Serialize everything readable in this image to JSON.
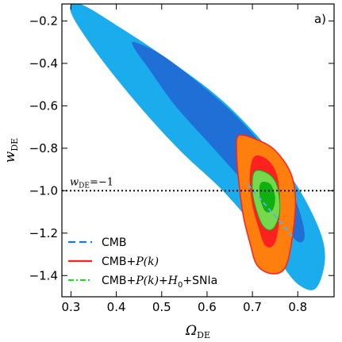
{
  "chart_data": {
    "type": "contour",
    "panel_label": "a)",
    "xlabel": "Ω",
    "xlabel_sub": "DE",
    "ylabel": "w",
    "ylabel_sub": "DE",
    "xlim": [
      0.28,
      0.88
    ],
    "ylim": [
      -1.5,
      -0.12
    ],
    "x_ticks": [
      0.3,
      0.4,
      0.5,
      0.6,
      0.7,
      0.8
    ],
    "x_tick_labels": [
      "0.3",
      "0.4",
      "0.5",
      "0.6",
      "0.7",
      "0.8"
    ],
    "y_ticks": [
      -0.2,
      -0.4,
      -0.6,
      -0.8,
      -1.0,
      -1.2,
      -1.4
    ],
    "y_tick_labels": [
      "−0.2",
      "−0.4",
      "−0.6",
      "−0.8",
      "−1.0",
      "−1.2",
      "−1.4"
    ],
    "reference_line": {
      "y": -1.0,
      "label_prefix": "w",
      "label_sub": "DE",
      "label_suffix": "=−1"
    },
    "legend": {
      "placement": "lower-left",
      "entries": [
        {
          "text": "CMB",
          "style": "dashed",
          "color": "#1f77d4"
        },
        {
          "text_parts": [
            "CMB+",
            "P(k)"
          ],
          "style": "solid",
          "color": "#ff2020"
        },
        {
          "text_parts": [
            "CMB+",
            "P(k)",
            "+",
            "H",
            "0",
            "+SNIa"
          ],
          "style": "dashdot",
          "color": "#33cc33"
        }
      ]
    },
    "colors": {
      "cmb_outer": "#1aacec",
      "cmb_inner": "#1f6fd6",
      "pk_outer": "#ff7f0e",
      "pk_inner": "#ff2020",
      "full_outer": "#76d84c",
      "full_inner": "#10b010"
    },
    "series": [
      {
        "name": "CMB",
        "level": "95%",
        "points": [
          [
            0.32,
            -0.12
          ],
          [
            0.4,
            -0.22
          ],
          [
            0.5,
            -0.36
          ],
          [
            0.62,
            -0.55
          ],
          [
            0.71,
            -0.74
          ],
          [
            0.79,
            -0.95
          ],
          [
            0.845,
            -1.17
          ],
          [
            0.86,
            -1.32
          ],
          [
            0.84,
            -1.46
          ],
          [
            0.8,
            -1.44
          ],
          [
            0.755,
            -1.32
          ],
          [
            0.7,
            -1.16
          ],
          [
            0.63,
            -0.99
          ],
          [
            0.54,
            -0.81
          ],
          [
            0.45,
            -0.6
          ],
          [
            0.36,
            -0.36
          ],
          [
            0.3,
            -0.16
          ]
        ]
      },
      {
        "name": "CMB",
        "level": "68%",
        "points": [
          [
            0.44,
            -0.3
          ],
          [
            0.5,
            -0.36
          ],
          [
            0.58,
            -0.49
          ],
          [
            0.66,
            -0.64
          ],
          [
            0.73,
            -0.81
          ],
          [
            0.79,
            -1.02
          ],
          [
            0.815,
            -1.2
          ],
          [
            0.8,
            -1.24
          ],
          [
            0.76,
            -1.14
          ],
          [
            0.69,
            -0.98
          ],
          [
            0.61,
            -0.79
          ],
          [
            0.53,
            -0.6
          ],
          [
            0.47,
            -0.42
          ],
          [
            0.44,
            -0.33
          ]
        ]
      },
      {
        "name": "CMB+P(k)",
        "level": "95%",
        "points": [
          [
            0.67,
            -0.74
          ],
          [
            0.71,
            -0.76
          ],
          [
            0.75,
            -0.81
          ],
          [
            0.785,
            -0.92
          ],
          [
            0.795,
            -1.06
          ],
          [
            0.785,
            -1.26
          ],
          [
            0.77,
            -1.37
          ],
          [
            0.74,
            -1.39
          ],
          [
            0.71,
            -1.35
          ],
          [
            0.695,
            -1.25
          ],
          [
            0.68,
            -1.12
          ],
          [
            0.67,
            -0.96
          ],
          [
            0.665,
            -0.82
          ]
        ]
      },
      {
        "name": "CMB+P(k)",
        "level": "68%",
        "points": [
          [
            0.705,
            -0.84
          ],
          [
            0.735,
            -0.86
          ],
          [
            0.755,
            -0.94
          ],
          [
            0.76,
            -1.09
          ],
          [
            0.75,
            -1.24
          ],
          [
            0.73,
            -1.26
          ],
          [
            0.715,
            -1.18
          ],
          [
            0.7,
            -1.06
          ],
          [
            0.695,
            -0.93
          ]
        ]
      },
      {
        "name": "CMB+P(k)+H0+SNIa",
        "level": "95%",
        "points": [
          [
            0.705,
            -0.91
          ],
          [
            0.735,
            -0.92
          ],
          [
            0.755,
            -0.98
          ],
          [
            0.76,
            -1.1
          ],
          [
            0.745,
            -1.18
          ],
          [
            0.725,
            -1.17
          ],
          [
            0.71,
            -1.1
          ],
          [
            0.7,
            -1.0
          ]
        ]
      },
      {
        "name": "CMB+P(k)+H0+SNIa",
        "level": "68%",
        "points": [
          [
            0.72,
            -0.96
          ],
          [
            0.74,
            -0.97
          ],
          [
            0.75,
            -1.03
          ],
          [
            0.745,
            -1.09
          ],
          [
            0.73,
            -1.1
          ],
          [
            0.72,
            -1.06
          ],
          [
            0.715,
            -1.0
          ]
        ]
      }
    ]
  }
}
